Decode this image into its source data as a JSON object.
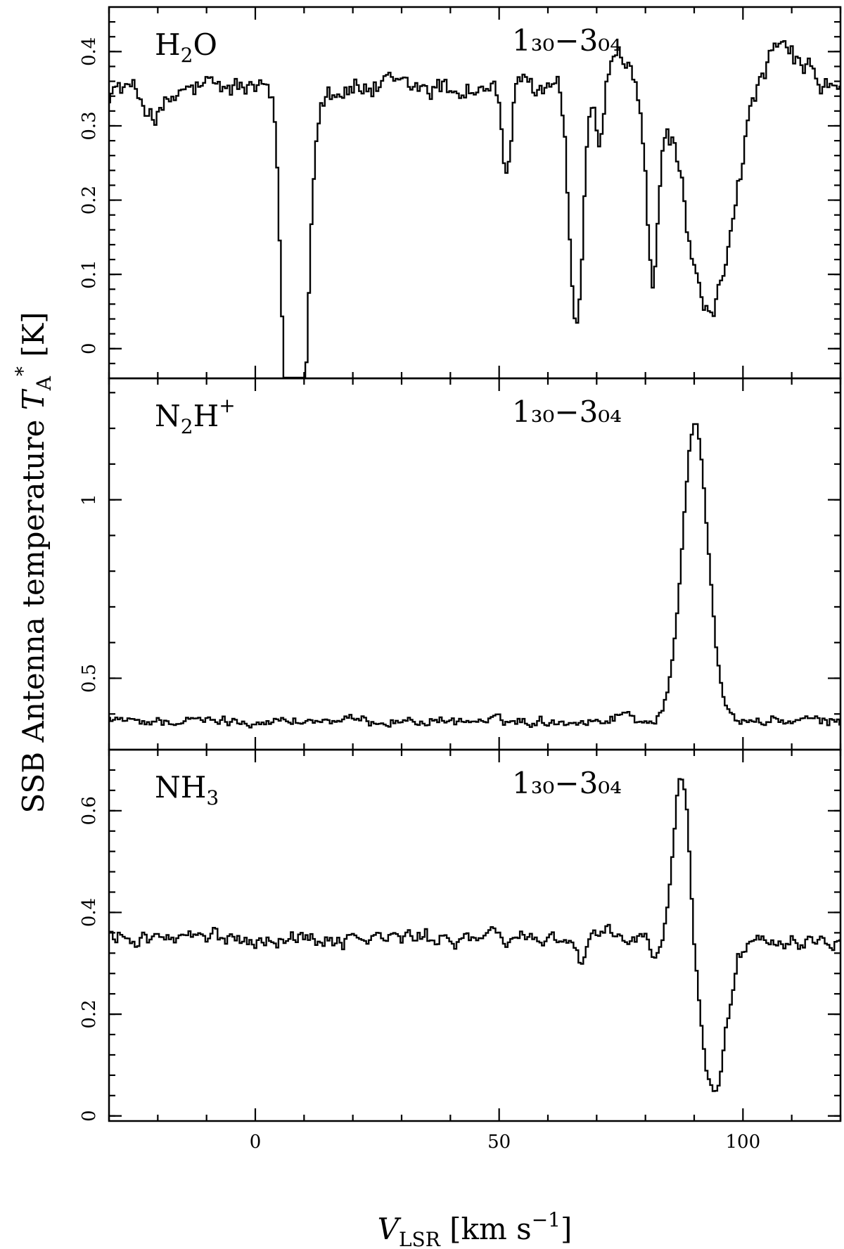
{
  "chart_data": [
    {
      "type": "line",
      "panel": "top",
      "molecule": {
        "base": "H",
        "sub": "2",
        "tail": "O"
      },
      "transition": "1₃₀−3₀₄",
      "xlim": [
        -30,
        120
      ],
      "ylim": [
        -0.04,
        0.46
      ],
      "yticks": [
        0,
        0.1,
        0.2,
        0.3,
        0.4
      ],
      "ytick_labels": [
        "0",
        "0.1",
        "0.2",
        "0.3",
        "0.4"
      ],
      "baseline": 0.35,
      "features": [
        {
          "x": [
            -28,
            -10
          ],
          "y": [
            0.365,
            0.375
          ]
        },
        {
          "x": -20,
          "depth": -0.035,
          "width": 2.5
        },
        {
          "x": 6.3,
          "depth": -0.29,
          "width": 1.0
        },
        {
          "x": 9.7,
          "depth": -0.31,
          "width": 1.3
        },
        {
          "x": 8.0,
          "depth": -0.2,
          "width": 2.2
        },
        {
          "x": 51.5,
          "depth": -0.11,
          "width": 0.9
        },
        {
          "x": 65.8,
          "depth": -0.34,
          "width": 1.3
        },
        {
          "x": 70.5,
          "depth": -0.08,
          "width": 0.8
        },
        {
          "x": 74.5,
          "depth": 0.035,
          "width": 2.0
        },
        {
          "x": 81.5,
          "depth": -0.25,
          "width": 1.2
        },
        {
          "x": 86.5,
          "depth": 0.02,
          "width": 1.0
        },
        {
          "x": 93.0,
          "depth": -0.31,
          "width": 4.5
        },
        {
          "x": 108,
          "depth": 0.05,
          "width": 4.0
        }
      ],
      "noise": 0.012
    },
    {
      "type": "line",
      "panel": "middle",
      "molecule": {
        "base": "N",
        "sub": "2",
        "tail": "H",
        "sup": "+"
      },
      "transition": "1₃₀−3₀₄",
      "xlim": [
        -30,
        120
      ],
      "ylim": [
        0.3,
        1.34
      ],
      "yticks": [
        0.5,
        1.0
      ],
      "ytick_labels": [
        "0.5",
        "1"
      ],
      "baseline": 0.38,
      "features": [
        {
          "x": 90.2,
          "depth": 0.84,
          "width": 2.6
        },
        {
          "x": 75.5,
          "depth": 0.02,
          "width": 2.0
        }
      ],
      "noise": 0.009
    },
    {
      "type": "line",
      "panel": "bottom",
      "molecule": {
        "base": "NH",
        "sub": "3",
        "tail": ""
      },
      "transition": "1₃₀−3₀₄",
      "xlim": [
        -30,
        120
      ],
      "ylim": [
        -0.01,
        0.72
      ],
      "yticks": [
        0,
        0.2,
        0.4,
        0.6
      ],
      "ytick_labels": [
        "0",
        "0.2",
        "0.4",
        "0.6"
      ],
      "baseline": 0.35,
      "features": [
        {
          "x": 87.5,
          "depth": 0.33,
          "width": 1.6
        },
        {
          "x": 94.0,
          "depth": -0.3,
          "width": 2.6
        },
        {
          "x": 66.8,
          "depth": -0.05,
          "width": 0.8
        },
        {
          "x": 82.0,
          "depth": -0.04,
          "width": 1.0
        }
      ],
      "noise": 0.011
    }
  ],
  "x_axis": {
    "ticks": [
      0,
      50,
      100
    ],
    "tick_labels": [
      "0",
      "50",
      "100"
    ],
    "title_base": "V",
    "title_sub": "LSR",
    "title_rest": " [km s",
    "title_sup": "−1",
    "title_close": "]"
  },
  "y_axis": {
    "title_main": "SSB Antenna temperature ",
    "title_var": "T",
    "title_sub": "A",
    "title_sup": "*",
    "title_close": " [K]"
  }
}
